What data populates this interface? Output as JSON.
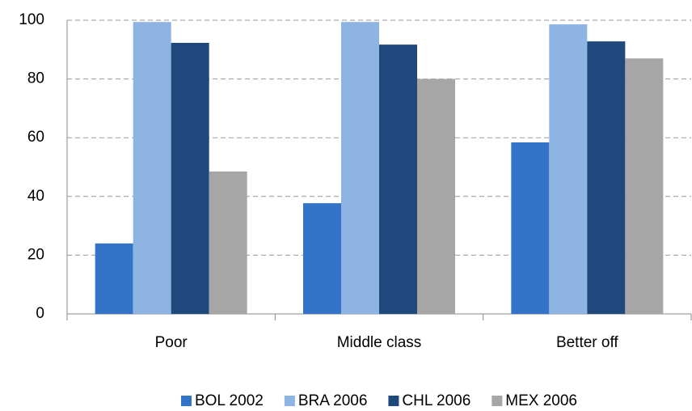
{
  "chart_data": {
    "type": "bar",
    "categories": [
      "Poor",
      "Middle class",
      "Better off"
    ],
    "series": [
      {
        "name": "BOL 2002",
        "color": "#3374c8",
        "values": [
          24,
          37.7,
          58.4
        ]
      },
      {
        "name": "BRA 2006",
        "color": "#8eb4e3",
        "values": [
          99.4,
          99.4,
          98.6
        ]
      },
      {
        "name": "CHL 2006",
        "color": "#1f497d",
        "values": [
          92.3,
          91.7,
          92.8
        ]
      },
      {
        "name": "MEX 2006",
        "color": "#a6a6a6",
        "values": [
          48.5,
          80,
          87
        ]
      }
    ],
    "ylim": [
      0,
      100
    ],
    "yticks": [
      0,
      20,
      40,
      60,
      80,
      100
    ],
    "grid": true,
    "legend": "bottom"
  }
}
